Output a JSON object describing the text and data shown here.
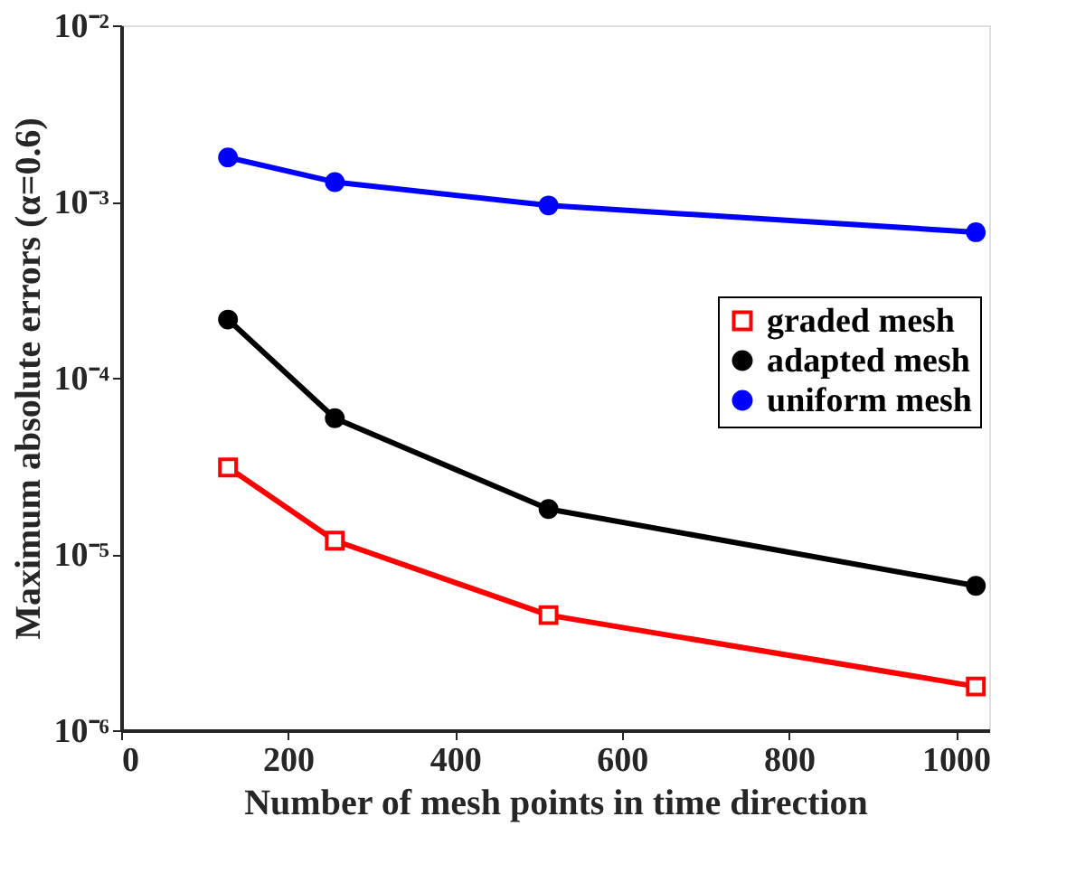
{
  "chart_data": {
    "type": "line",
    "xlabel": "Number of mesh points in time direction",
    "ylabel": "Maximum absolute errors (α=0.6)",
    "x": [
      128,
      256,
      512,
      1024
    ],
    "log": "y",
    "xlim": [
      0,
      1040
    ],
    "xticks": [
      0,
      200,
      400,
      600,
      800,
      1000
    ],
    "ylim": [
      1e-06,
      0.01
    ],
    "yticks": [
      {
        "value": 1e-06,
        "label": "10⁻⁶"
      },
      {
        "value": 1e-05,
        "label": "10⁻⁵"
      },
      {
        "value": 0.0001,
        "label": "10⁻⁴"
      },
      {
        "value": 0.001,
        "label": "10⁻³"
      },
      {
        "value": 0.01,
        "label": "10⁻²"
      }
    ],
    "grid": false,
    "legend": "right",
    "line_style": "solid",
    "series": [
      {
        "name": "graded mesh",
        "color": "#ff0000",
        "marker": "square",
        "values": [
          3.1e-05,
          1.19e-05,
          4.5e-06,
          1.77e-06
        ]
      },
      {
        "name": "adapted mesh",
        "color": "#000000",
        "marker": "circle",
        "values": [
          0.000214,
          5.9e-05,
          1.8e-05,
          6.6e-06
        ]
      },
      {
        "name": "uniform mesh",
        "color": "#0000ff",
        "marker": "circle",
        "values": [
          0.00178,
          0.00129,
          0.00095,
          0.00067
        ]
      }
    ]
  }
}
